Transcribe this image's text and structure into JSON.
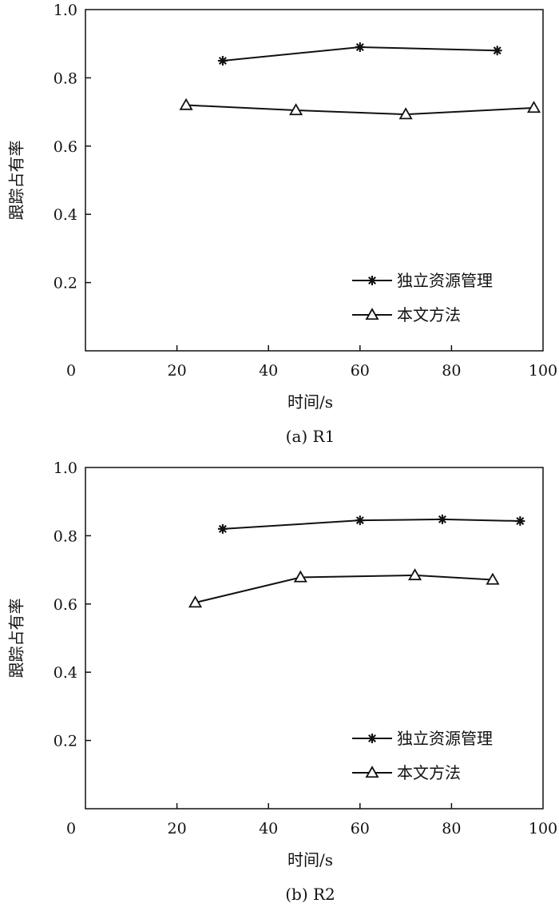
{
  "chart_data": [
    {
      "type": "line",
      "caption": "(a) R1",
      "xlabel": "时间/s",
      "ylabel": "跟踪占有率",
      "xlim": [
        0,
        100
      ],
      "ylim": [
        0,
        1.0
      ],
      "xticks": [
        "0",
        "20",
        "40",
        "60",
        "80",
        "100"
      ],
      "yticks": [
        "0.2",
        "0.4",
        "0.6",
        "0.8",
        "1.0"
      ],
      "grid": false,
      "legend_position": "bottom-right",
      "series": [
        {
          "name": "独立资源管理",
          "marker": "asterisk",
          "x": [
            30,
            60,
            90
          ],
          "y": [
            0.85,
            0.89,
            0.88
          ]
        },
        {
          "name": "本文方法",
          "marker": "triangle",
          "x": [
            22,
            46,
            70,
            98
          ],
          "y": [
            0.72,
            0.705,
            0.693,
            0.712
          ]
        }
      ]
    },
    {
      "type": "line",
      "caption": "(b) R2",
      "xlabel": "时间/s",
      "ylabel": "跟踪占有率",
      "xlim": [
        0,
        100
      ],
      "ylim": [
        0,
        1.0
      ],
      "xticks": [
        "0",
        "20",
        "40",
        "60",
        "80",
        "100"
      ],
      "yticks": [
        "0.2",
        "0.4",
        "0.6",
        "0.8",
        "1.0"
      ],
      "grid": false,
      "legend_position": "bottom-right",
      "series": [
        {
          "name": "独立资源管理",
          "marker": "asterisk",
          "x": [
            30,
            60,
            78,
            95
          ],
          "y": [
            0.82,
            0.845,
            0.848,
            0.843
          ]
        },
        {
          "name": "本文方法",
          "marker": "triangle",
          "x": [
            24,
            47,
            72,
            89
          ],
          "y": [
            0.604,
            0.678,
            0.684,
            0.671
          ]
        }
      ]
    }
  ]
}
